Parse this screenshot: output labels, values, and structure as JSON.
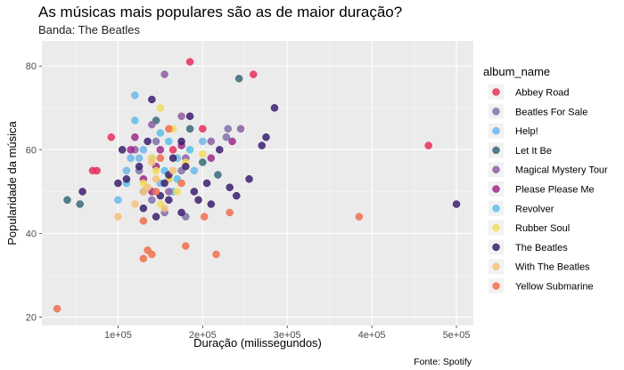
{
  "chart_data": {
    "type": "scatter",
    "title": "As músicas mais populares são as de maior duração?",
    "subtitle": "Banda: The Beatles",
    "xlabel": "Duração (milissegundos)",
    "ylabel": "Popularidade da música",
    "caption": "Fonte: Spotify",
    "xlim": [
      10000,
      520000
    ],
    "ylim": [
      18,
      86
    ],
    "x_ticks": [
      100000,
      200000,
      300000,
      400000,
      500000
    ],
    "x_tick_labels": [
      "1e+05",
      "2e+05",
      "3e+05",
      "4e+05",
      "5e+05"
    ],
    "y_ticks": [
      20,
      40,
      60,
      80
    ],
    "y_tick_labels": [
      "20",
      "40",
      "60",
      "80"
    ],
    "grid": true,
    "legend": {
      "title": "album_name",
      "position": "right"
    },
    "series": [
      {
        "name": "Abbey Road",
        "color": "#e8305a",
        "points": [
          [
            185000,
            81
          ],
          [
            260000,
            78
          ],
          [
            467000,
            61
          ],
          [
            92000,
            63
          ],
          [
            70000,
            55
          ],
          [
            75000,
            55
          ],
          [
            165000,
            60
          ],
          [
            200000,
            65
          ],
          [
            130000,
            50
          ]
        ]
      },
      {
        "name": "Beatles For Sale",
        "color": "#7f72a8",
        "points": [
          [
            155000,
            45
          ],
          [
            180000,
            44
          ],
          [
            140000,
            48
          ],
          [
            160000,
            53
          ],
          [
            175000,
            55
          ],
          [
            228000,
            63
          ],
          [
            230000,
            65
          ],
          [
            125000,
            55
          ],
          [
            145000,
            62
          ]
        ]
      },
      {
        "name": "Help!",
        "color": "#6cb7ea",
        "points": [
          [
            120000,
            73
          ],
          [
            125000,
            58
          ],
          [
            130000,
            60
          ],
          [
            110000,
            55
          ],
          [
            150000,
            52
          ],
          [
            165000,
            50
          ],
          [
            190000,
            55
          ],
          [
            100000,
            48
          ],
          [
            115000,
            58
          ],
          [
            170000,
            58
          ],
          [
            200000,
            62
          ]
        ]
      },
      {
        "name": "Let It Be",
        "color": "#3a6a7a",
        "points": [
          [
            243000,
            77
          ],
          [
            40000,
            48
          ],
          [
            55000,
            47
          ],
          [
            218000,
            54
          ],
          [
            185000,
            65
          ],
          [
            145000,
            67
          ],
          [
            200000,
            57
          ]
        ]
      },
      {
        "name": "Magical Mystery Tour",
        "color": "#8e5ea2",
        "points": [
          [
            155000,
            78
          ],
          [
            140000,
            66
          ],
          [
            120000,
            60
          ],
          [
            175000,
            68
          ],
          [
            245000,
            65
          ],
          [
            210000,
            62
          ],
          [
            180000,
            58
          ],
          [
            160000,
            50
          ]
        ]
      },
      {
        "name": "Please Please Me",
        "color": "#9e2a8a",
        "points": [
          [
            120000,
            63
          ],
          [
            115000,
            60
          ],
          [
            140000,
            50
          ],
          [
            145000,
            56
          ],
          [
            130000,
            53
          ],
          [
            150000,
            60
          ],
          [
            210000,
            58
          ],
          [
            235000,
            62
          ],
          [
            175000,
            61
          ]
        ]
      },
      {
        "name": "Revolver",
        "color": "#5bc0e8",
        "points": [
          [
            155000,
            55
          ],
          [
            160000,
            62
          ],
          [
            130000,
            50
          ],
          [
            140000,
            58
          ],
          [
            150000,
            64
          ],
          [
            170000,
            53
          ],
          [
            185000,
            60
          ],
          [
            120000,
            67
          ],
          [
            110000,
            52
          ]
        ]
      },
      {
        "name": "Rubber Soul",
        "color": "#f4dc5b",
        "points": [
          [
            150000,
            70
          ],
          [
            165000,
            65
          ],
          [
            140000,
            58
          ],
          [
            145000,
            55
          ],
          [
            160000,
            53
          ],
          [
            180000,
            57
          ],
          [
            200000,
            59
          ],
          [
            130000,
            52
          ],
          [
            150000,
            47
          ],
          [
            170000,
            50
          ]
        ]
      },
      {
        "name": "The Beatles",
        "color": "#3c1f6e",
        "points": [
          [
            500000,
            47
          ],
          [
            285000,
            70
          ],
          [
            270000,
            61
          ],
          [
            255000,
            53
          ],
          [
            232000,
            51
          ],
          [
            240000,
            49
          ],
          [
            205000,
            52
          ],
          [
            190000,
            50
          ],
          [
            180000,
            56
          ],
          [
            175000,
            62
          ],
          [
            165000,
            58
          ],
          [
            160000,
            48
          ],
          [
            155000,
            52
          ],
          [
            150000,
            49
          ],
          [
            140000,
            72
          ],
          [
            135000,
            62
          ],
          [
            125000,
            56
          ],
          [
            110000,
            53
          ],
          [
            100000,
            52
          ],
          [
            58000,
            50
          ],
          [
            105000,
            60
          ],
          [
            130000,
            46
          ],
          [
            185000,
            68
          ],
          [
            220000,
            60
          ],
          [
            275000,
            63
          ],
          [
            210000,
            47
          ],
          [
            145000,
            44
          ],
          [
            175000,
            45
          ],
          [
            160000,
            54
          ],
          [
            195000,
            48
          ]
        ]
      },
      {
        "name": "With The Beatles",
        "color": "#f4c27a",
        "points": [
          [
            100000,
            44
          ],
          [
            145000,
            53
          ],
          [
            155000,
            46
          ],
          [
            135000,
            51
          ],
          [
            120000,
            47
          ],
          [
            140000,
            57
          ],
          [
            165000,
            55
          ],
          [
            130000,
            50
          ]
        ]
      },
      {
        "name": "Yellow Submarine",
        "color": "#f0704e",
        "points": [
          [
            28000,
            22
          ],
          [
            130000,
            34
          ],
          [
            135000,
            36
          ],
          [
            140000,
            35
          ],
          [
            180000,
            37
          ],
          [
            216000,
            35
          ],
          [
            385000,
            44
          ],
          [
            232000,
            45
          ],
          [
            202000,
            44
          ],
          [
            130000,
            43
          ],
          [
            150000,
            58
          ],
          [
            175000,
            52
          ],
          [
            160000,
            65
          ],
          [
            145000,
            50
          ]
        ]
      }
    ]
  }
}
